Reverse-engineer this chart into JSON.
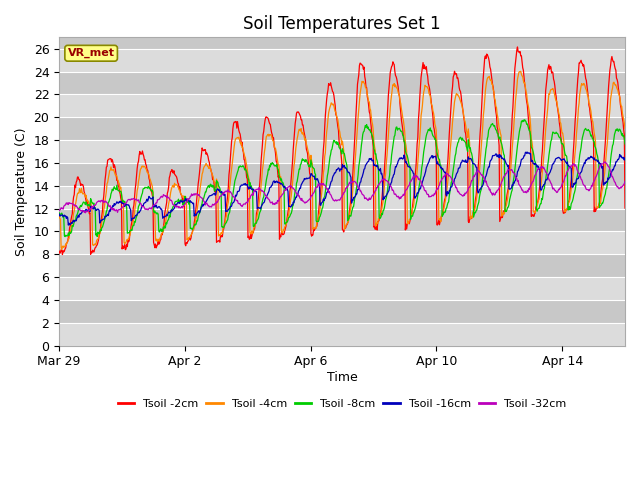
{
  "title": "Soil Temperatures Set 1",
  "xlabel": "Time",
  "ylabel": "Soil Temperature (C)",
  "ylim": [
    0,
    27
  ],
  "yticks": [
    0,
    2,
    4,
    6,
    8,
    10,
    12,
    14,
    16,
    18,
    20,
    22,
    24,
    26
  ],
  "bg_light": "#d8d8d8",
  "bg_dark": "#c8c8c8",
  "annotation_text": "VR_met",
  "annotation_color": "#990000",
  "annotation_bg": "#ffff88",
  "annotation_edge": "#888800",
  "series_colors": {
    "Tsoil -2cm": "#ff0000",
    "Tsoil -4cm": "#ff8800",
    "Tsoil -8cm": "#00cc00",
    "Tsoil -16cm": "#0000bb",
    "Tsoil -32cm": "#bb00bb"
  },
  "legend_labels": [
    "Tsoil -2cm",
    "Tsoil -4cm",
    "Tsoil -8cm",
    "Tsoil -16cm",
    "Tsoil -32cm"
  ],
  "xtick_labels": [
    "Mar 29",
    "Apr 2",
    "Apr 6",
    "Apr 10",
    "Apr 14"
  ],
  "xtick_positions": [
    0,
    4,
    8,
    12,
    16
  ],
  "total_days": 18,
  "points_per_day": 48
}
